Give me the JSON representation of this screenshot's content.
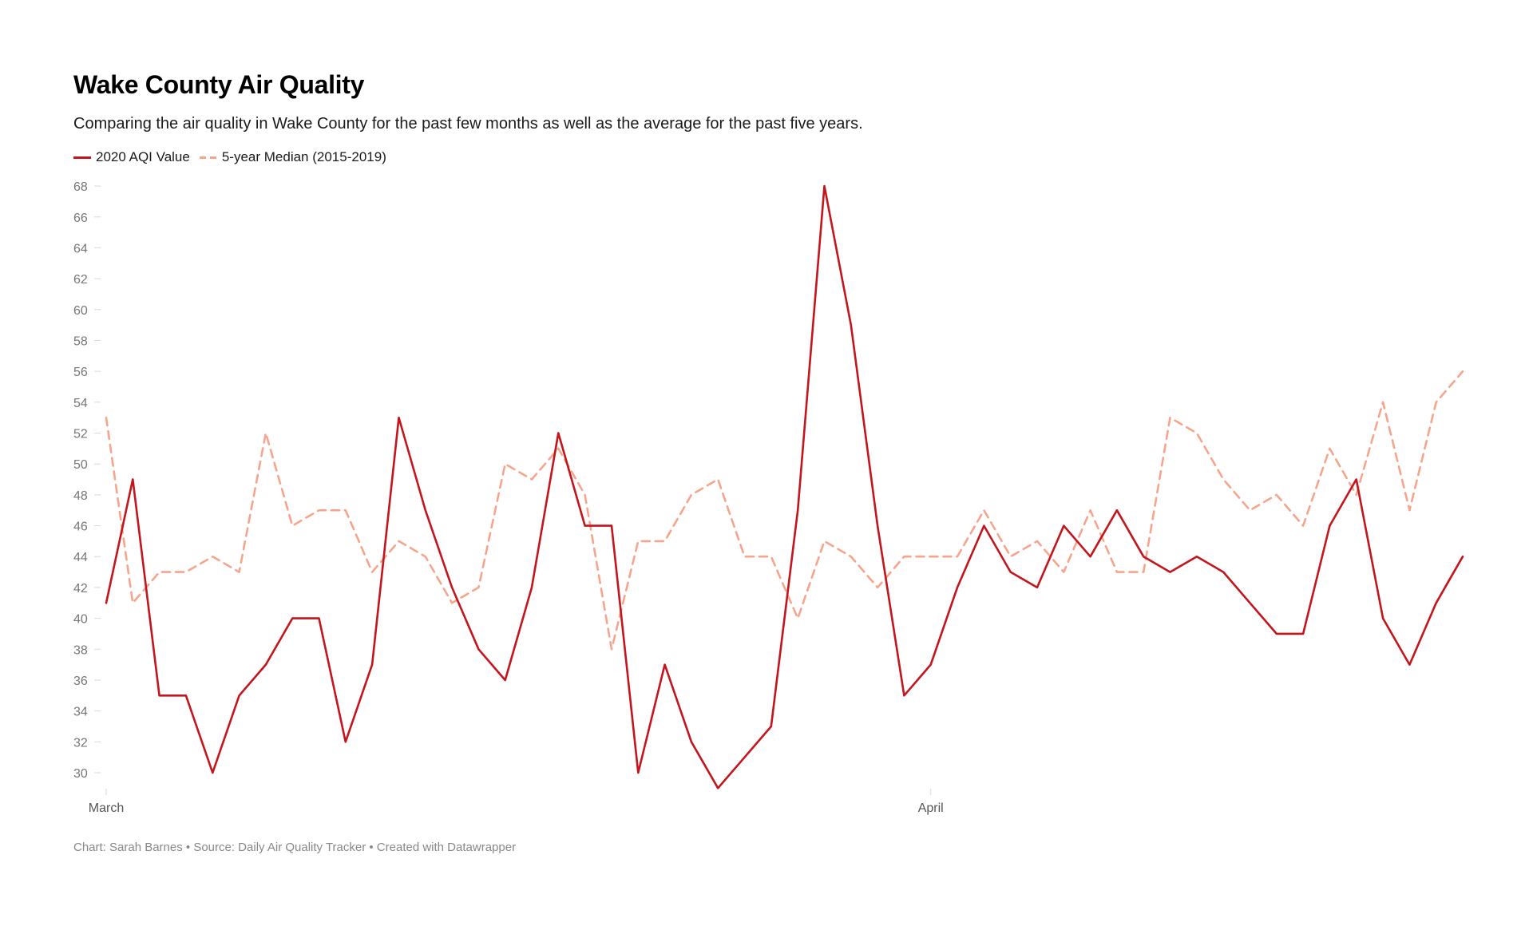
{
  "title": "Wake County Air Quality",
  "subtitle": "Comparing the air quality in Wake County for the past few months as well as the average for the past five years.",
  "footer": "Chart: Sarah Barnes • Source: Daily Air Quality Tracker • Created with Datawrapper",
  "colors": {
    "aqi_2020": "#c4141c",
    "median_5yr": "#f6a58c"
  },
  "chart_data": {
    "type": "line",
    "title": "Wake County Air Quality",
    "xlabel": "",
    "ylabel": "",
    "x_tick_labels": [
      {
        "label": "March",
        "date": "2020-03-01"
      },
      {
        "label": "April",
        "date": "2020-04-01"
      }
    ],
    "x": [
      "2020-03-01",
      "2020-03-02",
      "2020-03-03",
      "2020-03-04",
      "2020-03-05",
      "2020-03-06",
      "2020-03-07",
      "2020-03-08",
      "2020-03-09",
      "2020-03-10",
      "2020-03-11",
      "2020-03-12",
      "2020-03-13",
      "2020-03-14",
      "2020-03-15",
      "2020-03-16",
      "2020-03-17",
      "2020-03-18",
      "2020-03-19",
      "2020-03-20",
      "2020-03-21",
      "2020-03-22",
      "2020-03-23",
      "2020-03-24",
      "2020-03-25",
      "2020-03-26",
      "2020-03-27",
      "2020-03-28",
      "2020-03-29",
      "2020-03-30",
      "2020-03-31",
      "2020-04-01",
      "2020-04-02",
      "2020-04-03",
      "2020-04-04",
      "2020-04-05",
      "2020-04-06",
      "2020-04-07",
      "2020-04-08",
      "2020-04-09",
      "2020-04-10",
      "2020-04-11",
      "2020-04-12",
      "2020-04-13",
      "2020-04-14",
      "2020-04-15",
      "2020-04-16",
      "2020-04-17",
      "2020-04-18",
      "2020-04-19",
      "2020-04-20",
      "2020-04-21"
    ],
    "ylim": [
      29,
      68
    ],
    "y_ticks": [
      30,
      32,
      34,
      36,
      38,
      40,
      42,
      44,
      46,
      48,
      50,
      52,
      54,
      56,
      58,
      60,
      62,
      64,
      66,
      68
    ],
    "grid": false,
    "legend_position": "top-left",
    "series": [
      {
        "name": "2020 AQI Value",
        "style": "solid",
        "values": [
          41,
          49,
          35,
          35,
          30,
          35,
          37,
          40,
          40,
          32,
          37,
          53,
          47,
          42,
          38,
          36,
          42,
          52,
          46,
          46,
          30,
          37,
          32,
          29,
          31,
          33,
          47,
          68,
          59,
          46,
          35,
          37,
          42,
          46,
          43,
          42,
          46,
          44,
          47,
          44,
          43,
          44,
          43,
          41,
          39,
          39,
          46,
          49,
          40,
          37,
          41,
          44
        ]
      },
      {
        "name": "5-year Median (2015-2019)",
        "style": "dashed",
        "values": [
          53,
          41,
          43,
          43,
          44,
          43,
          52,
          46,
          47,
          47,
          43,
          45,
          44,
          41,
          42,
          50,
          49,
          51,
          48,
          38,
          45,
          45,
          48,
          49,
          44,
          44,
          40,
          45,
          44,
          42,
          44,
          44,
          44,
          47,
          44,
          45,
          43,
          47,
          43,
          43,
          53,
          52,
          49,
          47,
          48,
          46,
          51,
          48,
          54,
          47,
          54,
          56
        ]
      }
    ]
  }
}
